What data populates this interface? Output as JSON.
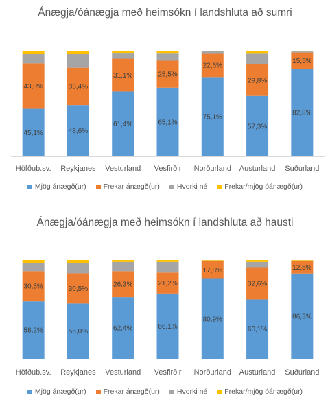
{
  "colors": {
    "Mjög ánægð(ur)": "#5b9bd5",
    "Frekar ánægð(ur)": "#ed7d31",
    "Hvorki né": "#a5a5a5",
    "Frekar/mjög óánægð(ur)": "#ffc000"
  },
  "chart_data": [
    {
      "type": "bar",
      "stacked": true,
      "title": "Ánægja/óánægja með heimsókn í landshluta að sumri",
      "categories": [
        "Höfðub.sv.",
        "Reykjanes",
        "Vesturland",
        "Vesfirðir",
        "Norðurland",
        "Austurland",
        "Suðurland"
      ],
      "ylim": [
        0,
        100
      ],
      "grid": false,
      "legend_position": "bottom",
      "series": [
        {
          "name": "Mjög ánægð(ur)",
          "values": [
            45.1,
            48.6,
            61.4,
            65.1,
            75.1,
            57.3,
            82.8
          ],
          "labels": [
            "45,1%",
            "48,6%",
            "61,4%",
            "65,1%",
            "75,1%",
            "57,3%",
            "82,8%"
          ]
        },
        {
          "name": "Frekar ánægð(ur)",
          "values": [
            43.0,
            35.4,
            31.1,
            25.5,
            22.6,
            29.8,
            15.5
          ],
          "labels": [
            "43,0%",
            "35,4%",
            "31,1%",
            "25,5%",
            "22,6%",
            "29,8%",
            "15,5%"
          ]
        },
        {
          "name": "Hvorki né",
          "values": [
            8.9,
            13.0,
            5.5,
            7.3,
            1.8,
            10.7,
            1.0
          ]
        },
        {
          "name": "Frekar/mjög óánægð(ur)",
          "values": [
            3.0,
            3.0,
            2.0,
            2.1,
            0.5,
            2.2,
            0.7
          ]
        }
      ]
    },
    {
      "type": "bar",
      "stacked": true,
      "title": "Ánægja/óánægja með heimsókn í landshluta að hausti",
      "categories": [
        "Höfðub.sv.",
        "Reykjanes",
        "Vesturland",
        "Vesfirðir",
        "Norðurland",
        "Austurland",
        "Suðurland"
      ],
      "ylim": [
        0,
        100
      ],
      "grid": false,
      "legend_position": "bottom",
      "series": [
        {
          "name": "Mjög ánægð(ur)",
          "values": [
            58.2,
            56.0,
            62.4,
            66.1,
            80.9,
            60.1,
            86.3
          ],
          "labels": [
            "58,2%",
            "56,0%",
            "62,4%",
            "66,1%",
            "80,9%",
            "60,1%",
            "86,3%"
          ]
        },
        {
          "name": "Frekar ánægð(ur)",
          "values": [
            30.5,
            30.5,
            26.3,
            21.2,
            17.8,
            32.6,
            12.5
          ],
          "labels": [
            "30,5%",
            "30,5%",
            "26,3%",
            "21,2%",
            "17,8%",
            "32,6%",
            "12,5%"
          ]
        },
        {
          "name": "Hvorki né",
          "values": [
            8.3,
            10.5,
            9.3,
            10.7,
            0.8,
            5.3,
            0.7
          ]
        },
        {
          "name": "Frekar/mjög óánægð(ur)",
          "values": [
            3.0,
            3.0,
            2.0,
            2.0,
            0.5,
            2.0,
            0.5
          ]
        }
      ]
    }
  ]
}
